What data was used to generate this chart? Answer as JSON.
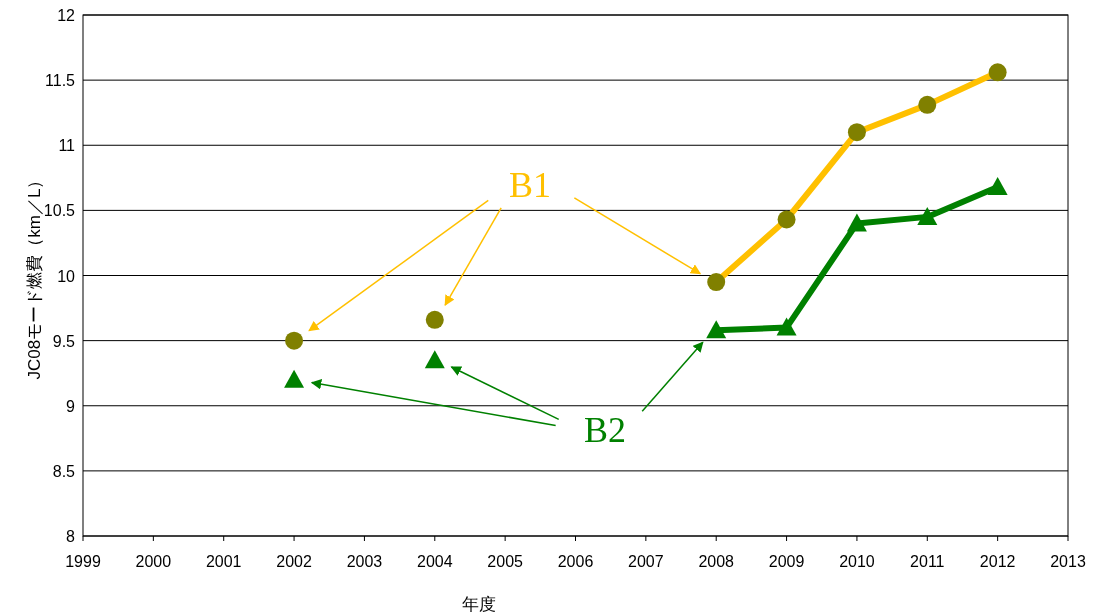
{
  "chart_data": {
    "type": "line",
    "xlabel": "年度",
    "ylabel": "JC08モード燃費（km／L）",
    "xlim": [
      1999,
      2013
    ],
    "xticks": [
      1999,
      2000,
      2001,
      2002,
      2003,
      2004,
      2005,
      2006,
      2007,
      2008,
      2009,
      2010,
      2011,
      2012,
      2013
    ],
    "ylim": [
      8,
      12
    ],
    "yticks": [
      8,
      8.5,
      9,
      9.5,
      10,
      10.5,
      11,
      11.5,
      12
    ],
    "grid": "y",
    "legend": false,
    "series": [
      {
        "name": "B1",
        "type": "scatter",
        "marker": "circle",
        "color": "#808000",
        "x": [
          2002,
          2004
        ],
        "values": [
          9.5,
          9.66
        ]
      },
      {
        "marker": "circle",
        "color": "#ffc000",
        "colors": [
          "#808000",
          "#808000",
          "#808000",
          "#808000",
          "#808000"
        ],
        "x": [
          2008,
          2009,
          2010,
          2011,
          2012
        ],
        "values": [
          9.95,
          10.43,
          11.1,
          11.31,
          11.56
        ]
      },
      {
        "name": "B2",
        "type": "scatter",
        "marker": "triangle",
        "color": "#008000",
        "x": [
          2002,
          2004
        ],
        "values": [
          9.2,
          9.35
        ]
      },
      {
        "marker": "triangle",
        "color": "#008000",
        "x": [
          2008,
          2009,
          2010,
          2011,
          2012
        ],
        "values": [
          9.58,
          9.6,
          10.4,
          10.45,
          10.68
        ]
      }
    ]
  }
}
